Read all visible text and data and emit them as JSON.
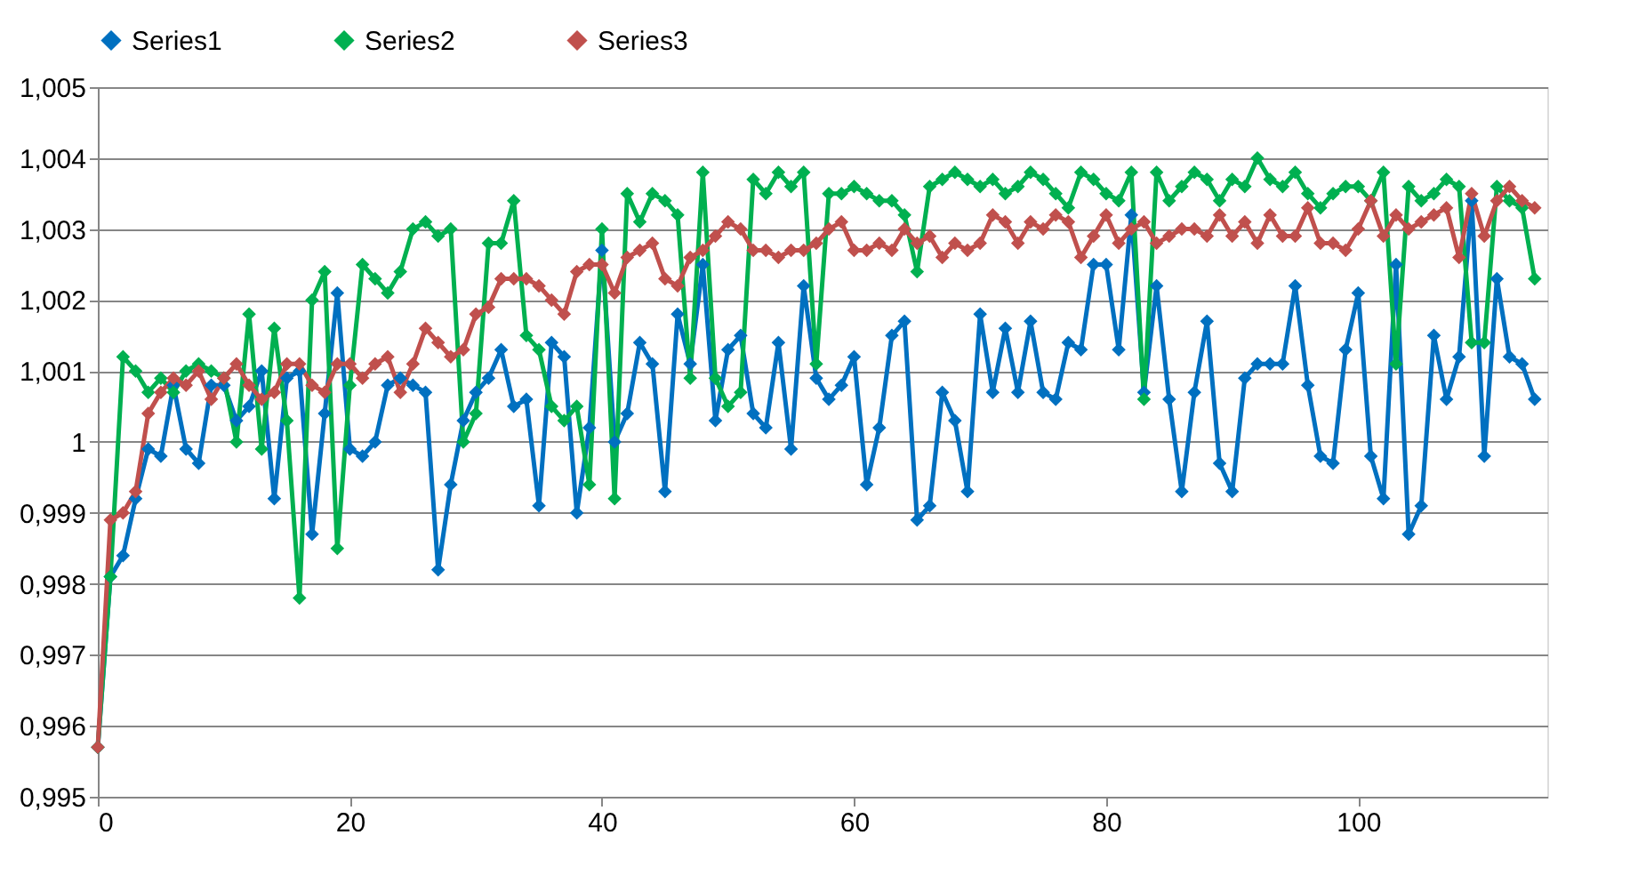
{
  "chart_data": {
    "type": "line",
    "marker": "diamond",
    "line_style": "solid",
    "grid": "y",
    "legend": "top",
    "x": [
      0,
      1,
      2,
      3,
      4,
      5,
      6,
      7,
      8,
      9,
      10,
      11,
      12,
      13,
      14,
      15,
      16,
      17,
      18,
      19,
      20,
      21,
      22,
      23,
      24,
      25,
      26,
      27,
      28,
      29,
      30,
      31,
      32,
      33,
      34,
      35,
      36,
      37,
      38,
      39,
      40,
      41,
      42,
      43,
      44,
      45,
      46,
      47,
      48,
      49,
      50,
      51,
      52,
      53,
      54,
      55,
      56,
      57,
      58,
      59,
      60,
      61,
      62,
      63,
      64,
      65,
      66,
      67,
      68,
      69,
      70,
      71,
      72,
      73,
      74,
      75,
      76,
      77,
      78,
      79,
      80,
      81,
      82,
      83,
      84,
      85,
      86,
      87,
      88,
      89,
      90,
      91,
      92,
      93,
      94,
      95,
      96,
      97,
      98,
      99,
      100,
      101,
      102,
      103,
      104,
      105,
      106,
      107,
      108,
      109,
      110,
      111,
      112,
      113,
      114
    ],
    "xlim": [
      0,
      115
    ],
    "xticks": [
      0,
      20,
      40,
      60,
      80,
      100
    ],
    "ylim": [
      0.995,
      1.005
    ],
    "yticks": [
      {
        "value": 0.995,
        "label": "0,995"
      },
      {
        "value": 0.996,
        "label": "0,996"
      },
      {
        "value": 0.997,
        "label": "0,997"
      },
      {
        "value": 0.998,
        "label": "0,998"
      },
      {
        "value": 0.999,
        "label": "0,999"
      },
      1,
      {
        "value": 1.001,
        "label": "1,001"
      },
      {
        "value": 1.002,
        "label": "1,002"
      },
      {
        "value": 1.003,
        "label": "1,003"
      },
      {
        "value": 1.004,
        "label": "1,004"
      },
      {
        "value": 1.005,
        "label": "1,005"
      }
    ],
    "series": [
      {
        "name": "Series1",
        "color": "#0070c0",
        "values": [
          0.9957,
          0.9981,
          0.9984,
          0.9992,
          0.9999,
          0.9998,
          1.0008,
          0.9999,
          0.9997,
          1.0008,
          1.0008,
          1.0003,
          1.0005,
          1.001,
          0.9992,
          1.0009,
          1.001,
          0.9987,
          1.0004,
          1.0021,
          0.9999,
          0.9998,
          1.0,
          1.0008,
          1.0009,
          1.0008,
          1.0007,
          0.9982,
          0.9994,
          1.0003,
          1.0007,
          1.0009,
          1.0013,
          1.0005,
          1.0006,
          0.9991,
          1.0014,
          1.0012,
          0.999,
          1.0002,
          1.0027,
          1.0,
          1.0004,
          1.0014,
          1.0011,
          0.9993,
          1.0018,
          1.0011,
          1.0025,
          1.0003,
          1.0013,
          1.0015,
          1.0004,
          1.0002,
          1.0014,
          0.9999,
          1.0022,
          1.0009,
          1.0006,
          1.0008,
          1.0012,
          0.9994,
          1.0002,
          1.0015,
          1.0017,
          0.9989,
          0.9991,
          1.0007,
          1.0003,
          0.9993,
          1.0018,
          1.0007,
          1.0016,
          1.0007,
          1.0017,
          1.0007,
          1.0006,
          1.0014,
          1.0013,
          1.0025,
          1.0025,
          1.0013,
          1.0032,
          1.0007,
          1.0022,
          1.0006,
          0.9993,
          1.0007,
          1.0017,
          0.9997,
          0.9993,
          1.0009,
          1.0011,
          1.0011,
          1.0011,
          1.0022,
          1.0008,
          0.9998,
          0.9997,
          1.0013,
          1.0021,
          0.9998,
          0.9992,
          1.0025,
          0.9987,
          0.9991,
          1.0015,
          1.0006,
          1.0012,
          1.0034,
          0.9998,
          1.0023,
          1.0012,
          1.0011,
          1.0006
        ]
      },
      {
        "name": "Series2",
        "color": "#00b050",
        "values": [
          0.9957,
          0.9981,
          1.0012,
          1.001,
          1.0007,
          1.0009,
          1.0007,
          1.001,
          1.0011,
          1.001,
          1.0009,
          1.0,
          1.0018,
          0.9999,
          1.0016,
          1.0003,
          0.9978,
          1.002,
          1.0024,
          0.9985,
          1.0008,
          1.0025,
          1.0023,
          1.0021,
          1.0024,
          1.003,
          1.0031,
          1.0029,
          1.003,
          1.0,
          1.0004,
          1.0028,
          1.0028,
          1.0034,
          1.0015,
          1.0013,
          1.0005,
          1.0003,
          1.0005,
          0.9994,
          1.003,
          0.9992,
          1.0035,
          1.0031,
          1.0035,
          1.0034,
          1.0032,
          1.0009,
          1.0038,
          1.0009,
          1.0005,
          1.0007,
          1.0037,
          1.0035,
          1.0038,
          1.0036,
          1.0038,
          1.0011,
          1.0035,
          1.0035,
          1.0036,
          1.0035,
          1.0034,
          1.0034,
          1.0032,
          1.0024,
          1.0036,
          1.0037,
          1.0038,
          1.0037,
          1.0036,
          1.0037,
          1.0035,
          1.0036,
          1.0038,
          1.0037,
          1.0035,
          1.0033,
          1.0038,
          1.0037,
          1.0035,
          1.0034,
          1.0038,
          1.0006,
          1.0038,
          1.0034,
          1.0036,
          1.0038,
          1.0037,
          1.0034,
          1.0037,
          1.0036,
          1.004,
          1.0037,
          1.0036,
          1.0038,
          1.0035,
          1.0033,
          1.0035,
          1.0036,
          1.0036,
          1.0034,
          1.0038,
          1.0011,
          1.0036,
          1.0034,
          1.0035,
          1.0037,
          1.0036,
          1.0014,
          1.0014,
          1.0036,
          1.0034,
          1.0033,
          1.0023
        ]
      },
      {
        "name": "Series3",
        "color": "#c0504d",
        "values": [
          0.9957,
          0.9989,
          0.999,
          0.9993,
          1.0004,
          1.0007,
          1.0009,
          1.0008,
          1.001,
          1.0006,
          1.0009,
          1.0011,
          1.0008,
          1.0006,
          1.0007,
          1.0011,
          1.0011,
          1.0008,
          1.0007,
          1.0011,
          1.0011,
          1.0009,
          1.0011,
          1.0012,
          1.0007,
          1.0011,
          1.0016,
          1.0014,
          1.0012,
          1.0013,
          1.0018,
          1.0019,
          1.0023,
          1.0023,
          1.0023,
          1.0022,
          1.002,
          1.0018,
          1.0024,
          1.0025,
          1.0025,
          1.0021,
          1.0026,
          1.0027,
          1.0028,
          1.0023,
          1.0022,
          1.0026,
          1.0027,
          1.0029,
          1.0031,
          1.003,
          1.0027,
          1.0027,
          1.0026,
          1.0027,
          1.0027,
          1.0028,
          1.003,
          1.0031,
          1.0027,
          1.0027,
          1.0028,
          1.0027,
          1.003,
          1.0028,
          1.0029,
          1.0026,
          1.0028,
          1.0027,
          1.0028,
          1.0032,
          1.0031,
          1.0028,
          1.0031,
          1.003,
          1.0032,
          1.0031,
          1.0026,
          1.0029,
          1.0032,
          1.0028,
          1.003,
          1.0031,
          1.0028,
          1.0029,
          1.003,
          1.003,
          1.0029,
          1.0032,
          1.0029,
          1.0031,
          1.0028,
          1.0032,
          1.0029,
          1.0029,
          1.0033,
          1.0028,
          1.0028,
          1.0027,
          1.003,
          1.0034,
          1.0029,
          1.0032,
          1.003,
          1.0031,
          1.0032,
          1.0033,
          1.0026,
          1.0035,
          1.0029,
          1.0034,
          1.0036,
          1.0034,
          1.0033
        ]
      }
    ]
  }
}
